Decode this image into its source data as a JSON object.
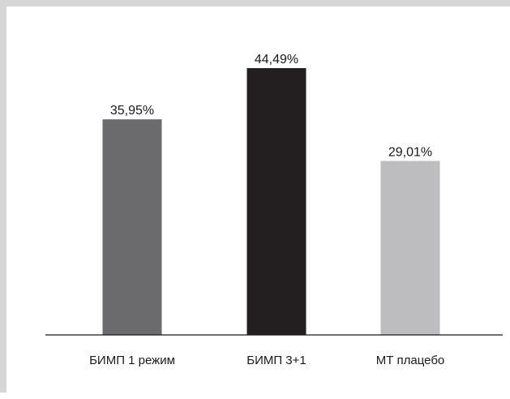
{
  "chart_data": {
    "type": "bar",
    "categories": [
      "БИМП 1 режим",
      "БИМП 3+1",
      "МТ плацебо"
    ],
    "values": [
      35.95,
      44.49,
      29.01
    ],
    "data_labels": [
      "35,95%",
      "44,49%",
      "29,01%"
    ],
    "colors": [
      "#6b6b6e",
      "#231f20",
      "#bdbdc0"
    ],
    "ylim": [
      0,
      50
    ],
    "grid": false,
    "legend": "none"
  }
}
